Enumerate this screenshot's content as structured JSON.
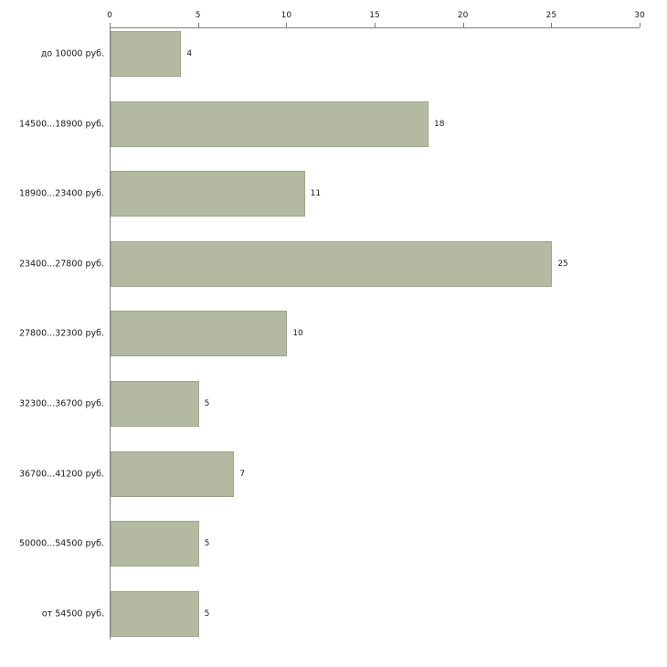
{
  "chart_data": {
    "type": "bar",
    "orientation": "horizontal",
    "title": "",
    "xlabel": "",
    "ylabel": "",
    "categories": [
      "до 10000 руб.",
      "14500...18900 руб.",
      "18900...23400 руб.",
      "23400...27800 руб.",
      "27800...32300 руб.",
      "32300...36700 руб.",
      "36700...41200 руб.",
      "50000...54500 руб.",
      "от 54500 руб."
    ],
    "values": [
      4,
      18,
      11,
      25,
      10,
      5,
      7,
      5,
      5
    ],
    "value_labels": [
      "4",
      "18",
      "11",
      "25",
      "10",
      "5",
      "7",
      "5",
      "5"
    ],
    "xlim": [
      0,
      30
    ],
    "x_ticks": [
      0,
      5,
      10,
      15,
      20,
      25,
      30
    ],
    "x_tick_labels": [
      "0",
      "5",
      "10",
      "15",
      "20",
      "25",
      "30"
    ],
    "axis_position": "top",
    "grid": false,
    "legend": "none",
    "bar_color": "#b4baa2",
    "bar_border_color": "#9fa588",
    "axis_color": "#7f7f7f",
    "text_color": "#1a1a1a",
    "background_color": "#ffffff"
  }
}
